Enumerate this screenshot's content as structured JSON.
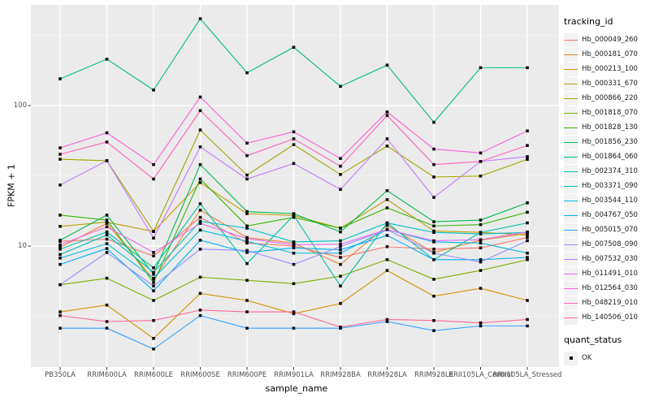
{
  "figure": {
    "y_axis": {
      "label": "FPKM + 1",
      "ticks": [
        {
          "label": "100",
          "value": 100
        },
        {
          "label": "10",
          "value": 10
        }
      ]
    },
    "x_axis": {
      "label": "sample_name"
    },
    "legend": {
      "title": "tracking_id"
    },
    "quant_legend": {
      "title": "quant_status",
      "items": [
        {
          "label": "OK",
          "marker": "black-square"
        }
      ]
    },
    "colors": {
      "panel_bg": "#EBEBEB",
      "grid_major": "#FFFFFF",
      "grid_minor": "#FFFFFF",
      "tick": "#333333",
      "point": "#0a0a0a"
    }
  },
  "chart_data": {
    "type": "line",
    "title": "",
    "xlabel": "sample_name",
    "ylabel": "FPKM + 1",
    "yscale": "log10",
    "ylim": [
      1.4,
      510
    ],
    "y_major_ticks": [
      10,
      100
    ],
    "y_minor_ticks": [
      3.162,
      31.62,
      316.2
    ],
    "grid": true,
    "legend_position": "right",
    "marker": "black-square",
    "x": [
      "PB350LA",
      "RRIM600LA",
      "RRIM600LE",
      "RRIM600SE",
      "RRIM600PE",
      "RRIM901LA",
      "RRIM928BA",
      "RRIM928LA",
      "RRIM928LE",
      "RRII105LA_Control",
      "RRII105LA_Stressed"
    ],
    "series": [
      {
        "name": "Hb_000049_260",
        "color": "#F8766D",
        "values": [
          10.8,
          11.2,
          8.5,
          16,
          10.5,
          10.0,
          8.3,
          9.9,
          9.5,
          9.7,
          11.5
        ]
      },
      {
        "name": "Hb_000181_070",
        "color": "#EA8331",
        "values": [
          9.8,
          14.5,
          5.8,
          18,
          11.5,
          10.5,
          7.4,
          14.0,
          9.0,
          11.0,
          12.3
        ]
      },
      {
        "name": "Hb_000213_100",
        "color": "#D89000",
        "values": [
          3.4,
          3.8,
          2.2,
          4.6,
          4.1,
          3.3,
          3.9,
          6.7,
          4.4,
          5.0,
          4.1
        ]
      },
      {
        "name": "Hb_000331_670",
        "color": "#C09B00",
        "values": [
          13.8,
          14.8,
          12.7,
          28.3,
          17.0,
          16.5,
          13.4,
          21.4,
          12.8,
          12.5,
          12.0
        ]
      },
      {
        "name": "Hb_000866_220",
        "color": "#A3A500",
        "values": [
          41.5,
          40.5,
          12.7,
          67,
          32,
          52.7,
          32.3,
          51.5,
          31,
          31.5,
          41.4
        ]
      },
      {
        "name": "Hb_001818_070",
        "color": "#7CAE00",
        "values": [
          5.3,
          5.9,
          4.1,
          6.0,
          5.7,
          5.4,
          6.1,
          8.0,
          5.8,
          6.7,
          8.0
        ]
      },
      {
        "name": "Hb_001828_130",
        "color": "#39B600",
        "values": [
          16.6,
          15.3,
          5.5,
          30,
          13.9,
          16.0,
          13.4,
          18.7,
          13.9,
          14.2,
          17.4
        ]
      },
      {
        "name": "Hb_001856_230",
        "color": "#00BB4E",
        "values": [
          11.0,
          16.6,
          6.3,
          38,
          17.6,
          17.0,
          12.6,
          24.8,
          14.9,
          15.3,
          20.3
        ]
      },
      {
        "name": "Hb_001864_060",
        "color": "#00BF7D",
        "values": [
          155,
          214,
          129,
          415,
          171,
          260,
          137,
          194,
          76,
          186,
          186
        ]
      },
      {
        "name": "Hb_002374_310",
        "color": "#00C1A3",
        "values": [
          9.5,
          12.6,
          7.0,
          20,
          7.5,
          16.5,
          5.2,
          14.6,
          8.0,
          12.5,
          14.6
        ]
      },
      {
        "name": "Hb_003371_090",
        "color": "#00BFC4",
        "values": [
          8.7,
          12.0,
          6.5,
          15,
          13.4,
          10.7,
          10.9,
          14.6,
          12.5,
          12.2,
          12.5
        ]
      },
      {
        "name": "Hb_003544_110",
        "color": "#00BAE0",
        "values": [
          8.2,
          10.4,
          5.9,
          13,
          10.8,
          8.9,
          8.9,
          13.1,
          10.7,
          10.5,
          8.9
        ]
      },
      {
        "name": "Hb_004767_050",
        "color": "#00B0F6",
        "values": [
          7.4,
          9.6,
          4.8,
          11,
          9.0,
          9.7,
          9.4,
          11.9,
          8.0,
          8.0,
          8.3
        ]
      },
      {
        "name": "Hb_005015_070",
        "color": "#35A2FF",
        "values": [
          2.6,
          2.6,
          1.85,
          3.2,
          2.6,
          2.6,
          2.6,
          2.9,
          2.5,
          2.7,
          2.7
        ]
      },
      {
        "name": "Hb_007508_090",
        "color": "#9590FF",
        "values": [
          5.3,
          9.0,
          5.2,
          9.5,
          9.3,
          7.4,
          9.9,
          13.1,
          8.9,
          7.7,
          10.9
        ]
      },
      {
        "name": "Hb_007532_030",
        "color": "#C77CFF",
        "values": [
          27.2,
          40.5,
          11.4,
          50.8,
          30,
          38.7,
          25.3,
          58,
          22.2,
          40,
          43.3
        ]
      },
      {
        "name": "Hb_011491_010",
        "color": "#E76BF3",
        "values": [
          10.2,
          13.7,
          9.0,
          14.5,
          11.3,
          10.2,
          10.3,
          13.1,
          10.9,
          11.1,
          12.6
        ]
      },
      {
        "name": "Hb_012564_030",
        "color": "#FA62DB",
        "values": [
          50,
          64,
          38,
          115,
          54,
          65,
          42,
          90,
          49,
          46,
          66
        ]
      },
      {
        "name": "Hb_048219_010",
        "color": "#FF62BC",
        "values": [
          45,
          55,
          30,
          92,
          44,
          58,
          37,
          85,
          38,
          40,
          52
        ]
      },
      {
        "name": "Hb_140506_010",
        "color": "#FF6A98",
        "values": [
          3.2,
          2.9,
          2.95,
          3.5,
          3.4,
          3.4,
          2.65,
          3.0,
          2.95,
          2.84,
          3.0
        ]
      }
    ]
  }
}
